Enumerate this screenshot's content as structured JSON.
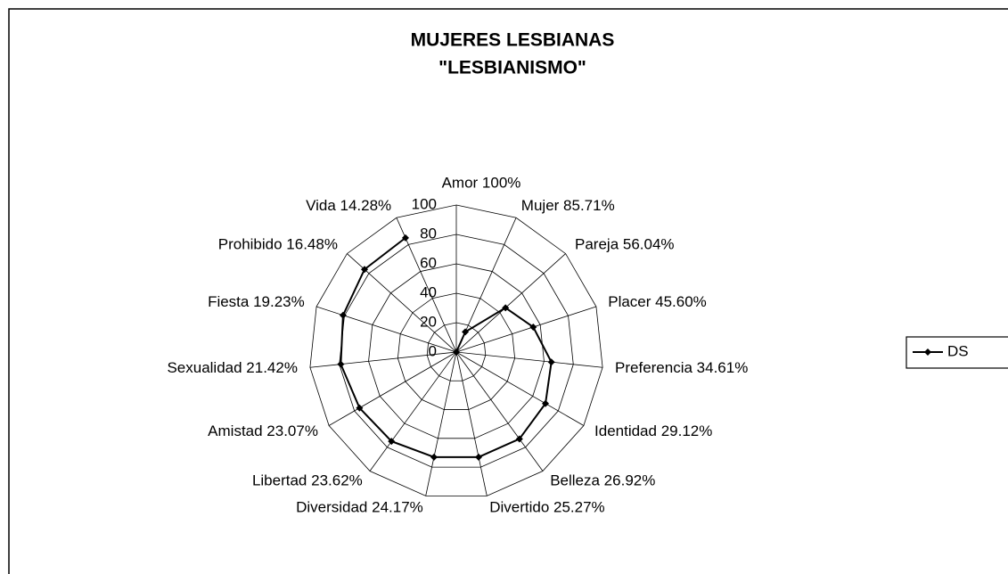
{
  "chart_data": {
    "type": "radar",
    "title": [
      "MUJERES LESBIANAS",
      "\"LESBIANISMO\""
    ],
    "categories": [
      "Amor 100%",
      "Mujer 85.71%",
      "Pareja 56.04%",
      "Placer 45.60%",
      "Preferencia 34.61%",
      "Identidad 29.12%",
      "Belleza 26.92%",
      "Divertido 25.27%",
      "Diversidad 24.17%",
      "Libertad 23.62%",
      "Amistad 23.07%",
      "Sexualidad 21.42%",
      "Fiesta 19.23%",
      "Prohibido 16.48%",
      "Vida 14.28%"
    ],
    "series": [
      {
        "name": "DS",
        "color": "#000000",
        "values": [
          0,
          15,
          45,
          55,
          65,
          70,
          73,
          73,
          73,
          75,
          76,
          79,
          81,
          84,
          85
        ]
      }
    ],
    "rlim": [
      0,
      100
    ],
    "rticks": [
      0,
      20,
      40,
      60,
      80,
      100
    ],
    "grid": true,
    "legend": "right"
  }
}
